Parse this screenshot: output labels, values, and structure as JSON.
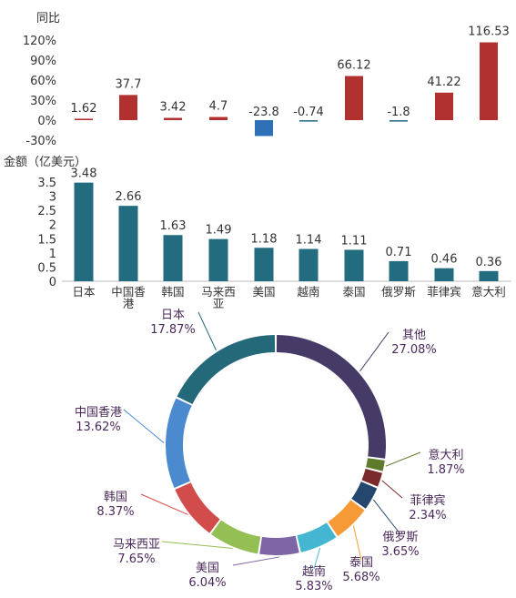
{
  "chart_data": [
    {
      "type": "bar",
      "ylabel": "同比",
      "categories": [
        "日本",
        "中国香港",
        "韩国",
        "马来西亚",
        "美国",
        "越南",
        "泰国",
        "俄罗斯",
        "菲律宾",
        "意大利"
      ],
      "values": [
        1.62,
        37.7,
        3.42,
        4.7,
        -23.8,
        -0.74,
        66.12,
        -1.8,
        41.22,
        116.53
      ],
      "value_labels": [
        "1.62",
        "37.7",
        "3.42",
        "4.7",
        "-23.8",
        "-0.74",
        "66.12",
        "-1.8",
        "41.22",
        "116.53"
      ],
      "yticks": [
        "120%",
        "90%",
        "60%",
        "30%",
        "0%",
        "-30%"
      ],
      "ylim": [
        -30,
        120
      ],
      "colors": {
        "positive": "#b0312f",
        "negative": "#2e6fb5",
        "small_negative": "#2e6f8e"
      }
    },
    {
      "type": "bar",
      "ylabel": "金额（亿美元）",
      "categories": [
        "日本",
        "中国香港",
        "韩国",
        "马来西亚",
        "美国",
        "越南",
        "泰国",
        "俄罗斯",
        "菲律宾",
        "意大利"
      ],
      "category_lines": [
        [
          "日本"
        ],
        [
          "中国香",
          "港"
        ],
        [
          "韩国"
        ],
        [
          "马来西",
          "亚"
        ],
        [
          "美国"
        ],
        [
          "越南"
        ],
        [
          "泰国"
        ],
        [
          "俄罗斯"
        ],
        [
          "菲律宾"
        ],
        [
          "意大利"
        ]
      ],
      "values": [
        3.48,
        2.66,
        1.63,
        1.49,
        1.18,
        1.14,
        1.11,
        0.71,
        0.46,
        0.36
      ],
      "value_labels": [
        "3.48",
        "2.66",
        "1.63",
        "1.49",
        "1.18",
        "1.14",
        "1.11",
        "0.71",
        "0.46",
        "0.36"
      ],
      "yticks": [
        "3.5",
        "3",
        "2.5",
        "2",
        "1.5",
        "1",
        "0.5",
        "0"
      ],
      "ylim": [
        0,
        3.5
      ],
      "color": "#236b7f"
    },
    {
      "type": "pie",
      "slices": [
        {
          "name": "其他",
          "value": 27.08,
          "label": "27.08%",
          "color": "#463a66"
        },
        {
          "name": "意大利",
          "value": 1.87,
          "label": "1.87%",
          "color": "#5e7a2a"
        },
        {
          "name": "菲律宾",
          "value": 2.34,
          "label": "2.34%",
          "color": "#7a2a2a"
        },
        {
          "name": "俄罗斯",
          "value": 3.65,
          "label": "3.65%",
          "color": "#24476e"
        },
        {
          "name": "泰国",
          "value": 5.68,
          "label": "5.68%",
          "color": "#f59a36"
        },
        {
          "name": "越南",
          "value": 5.83,
          "label": "5.83%",
          "color": "#45b6d1"
        },
        {
          "name": "美国",
          "value": 6.04,
          "label": "6.04%",
          "color": "#7e65a6"
        },
        {
          "name": "马来西亚",
          "value": 7.65,
          "label": "7.65%",
          "color": "#94bf54"
        },
        {
          "name": "韩国",
          "value": 8.37,
          "label": "8.37%",
          "color": "#d14c4a"
        },
        {
          "name": "中国香港",
          "value": 13.62,
          "label": "13.62%",
          "color": "#4c8ad0"
        },
        {
          "name": "日本",
          "value": 17.87,
          "label": "17.87%",
          "color": "#24697a"
        }
      ]
    }
  ]
}
